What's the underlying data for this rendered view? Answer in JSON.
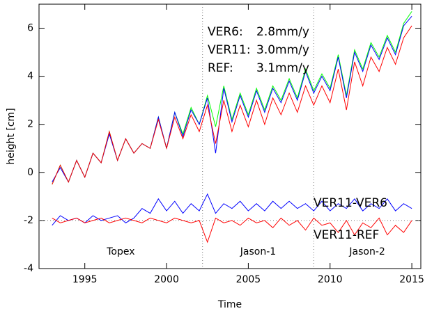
{
  "chart_data": {
    "type": "line",
    "xlabel": "Time",
    "ylabel": "height [cm]",
    "xlim": [
      1992.2,
      2015.55
    ],
    "ylim": [
      -4,
      7
    ],
    "xticks": [
      1995,
      2000,
      2005,
      2010,
      2015
    ],
    "yticks": [
      -4,
      -2,
      0,
      2,
      4,
      6
    ],
    "boundaries": [
      2002.2,
      2009.0
    ],
    "reference_line": -2,
    "regions": [
      "Topex",
      "Jason-1",
      "Jason-2"
    ],
    "x": [
      1993.0,
      1993.5,
      1994.0,
      1994.5,
      1995.0,
      1995.5,
      1996.0,
      1996.5,
      1997.0,
      1997.5,
      1998.0,
      1998.5,
      1999.0,
      1999.5,
      2000.0,
      2000.5,
      2001.0,
      2001.5,
      2002.0,
      2002.5,
      2003.0,
      2003.5,
      2004.0,
      2004.5,
      2005.0,
      2005.5,
      2006.0,
      2006.5,
      2007.0,
      2007.5,
      2008.0,
      2008.5,
      2009.0,
      2009.5,
      2010.0,
      2010.5,
      2011.0,
      2011.5,
      2012.0,
      2012.5,
      2013.0,
      2013.5,
      2014.0,
      2014.5,
      2015.0
    ],
    "series": [
      {
        "name": "VER6:",
        "trend_label": "2.8mm/y",
        "color": "#ff0000",
        "values": [
          -0.5,
          0.3,
          -0.4,
          0.5,
          -0.2,
          0.8,
          0.4,
          1.7,
          0.5,
          1.4,
          0.8,
          1.2,
          1.0,
          2.2,
          1.0,
          2.3,
          1.4,
          2.4,
          1.7,
          2.8,
          1.2,
          3.0,
          1.7,
          2.8,
          1.9,
          3.0,
          2.0,
          3.1,
          2.4,
          3.3,
          2.5,
          3.6,
          2.8,
          3.6,
          2.9,
          4.3,
          2.6,
          4.6,
          3.6,
          4.8,
          4.2,
          5.2,
          4.5,
          5.6,
          6.1
        ]
      },
      {
        "name": "VER11:",
        "trend_label": "3.0mm/y",
        "color": "#0000ff",
        "values": [
          -0.4,
          0.2,
          -0.4,
          0.5,
          -0.2,
          0.8,
          0.4,
          1.6,
          0.5,
          1.4,
          0.8,
          1.2,
          1.0,
          2.3,
          1.0,
          2.5,
          1.5,
          2.6,
          2.0,
          3.1,
          0.8,
          3.5,
          2.1,
          3.2,
          2.3,
          3.4,
          2.5,
          3.5,
          2.9,
          3.8,
          3.0,
          4.2,
          3.3,
          4.0,
          3.4,
          4.8,
          3.1,
          5.0,
          4.2,
          5.3,
          4.7,
          5.6,
          4.9,
          6.1,
          6.5
        ]
      },
      {
        "name": "REF:",
        "trend_label": "3.1mm/y",
        "color": "#00ff00",
        "values": [
          -0.5,
          0.3,
          -0.4,
          0.5,
          -0.2,
          0.8,
          0.4,
          1.7,
          0.5,
          1.4,
          0.8,
          1.2,
          1.0,
          2.3,
          1.0,
          2.5,
          1.6,
          2.7,
          2.0,
          3.2,
          1.9,
          3.6,
          2.2,
          3.3,
          2.4,
          3.5,
          2.6,
          3.6,
          3.0,
          3.9,
          3.1,
          4.3,
          3.4,
          4.1,
          3.5,
          4.9,
          3.2,
          5.1,
          4.3,
          5.4,
          4.8,
          5.7,
          5.0,
          6.2,
          6.7
        ]
      },
      {
        "name": "VER11-VER6",
        "color": "#0000ff",
        "values": [
          -2.2,
          -1.8,
          -2.0,
          -1.9,
          -2.1,
          -1.8,
          -2.0,
          -1.9,
          -1.8,
          -2.1,
          -1.9,
          -1.5,
          -1.7,
          -1.1,
          -1.6,
          -1.2,
          -1.7,
          -1.3,
          -1.6,
          -0.9,
          -1.7,
          -1.3,
          -1.5,
          -1.2,
          -1.6,
          -1.3,
          -1.6,
          -1.2,
          -1.5,
          -1.2,
          -1.5,
          -1.3,
          -1.6,
          -1.2,
          -1.6,
          -1.3,
          -1.5,
          -1.1,
          -1.6,
          -1.3,
          -1.5,
          -1.1,
          -1.6,
          -1.3,
          -1.5
        ]
      },
      {
        "name": "VER11-REF",
        "color": "#ff0000",
        "values": [
          -1.9,
          -2.1,
          -2.0,
          -1.9,
          -2.1,
          -2.0,
          -1.9,
          -2.1,
          -2.0,
          -1.9,
          -2.0,
          -2.1,
          -1.9,
          -2.0,
          -2.1,
          -1.9,
          -2.0,
          -2.1,
          -2.0,
          -2.9,
          -1.9,
          -2.1,
          -2.0,
          -2.2,
          -1.9,
          -2.1,
          -2.0,
          -2.3,
          -1.9,
          -2.2,
          -2.0,
          -2.4,
          -1.9,
          -2.2,
          -2.1,
          -2.5,
          -2.0,
          -2.6,
          -2.1,
          -2.3,
          -1.9,
          -2.6,
          -2.2,
          -2.5,
          -2.0
        ]
      }
    ]
  }
}
